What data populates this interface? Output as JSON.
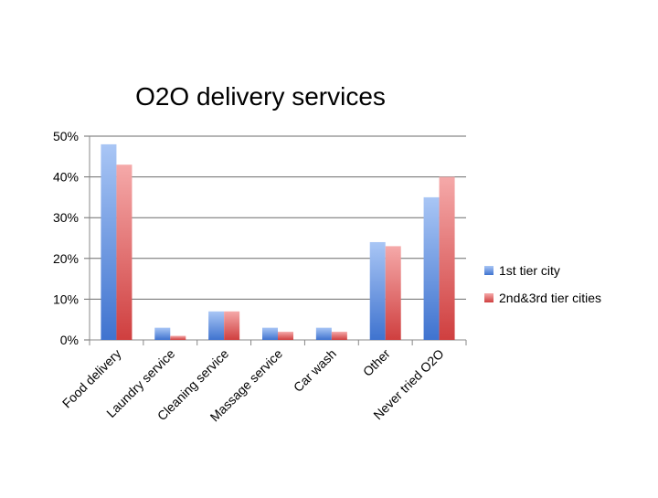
{
  "chart_data": {
    "type": "bar",
    "title": "O2O delivery services",
    "xlabel": "",
    "ylabel": "",
    "ylim": [
      0,
      50
    ],
    "yticks": [
      "0%",
      "10%",
      "20%",
      "30%",
      "40%",
      "50%"
    ],
    "ytick_values": [
      0,
      10,
      20,
      30,
      40,
      50
    ],
    "grid": "horizontal",
    "legend_position": "right",
    "categories": [
      "Food delivery",
      "Laundry service",
      "Cleaning service",
      "Massage service",
      "Car wash",
      "Other",
      "Never tried O2O"
    ],
    "series": [
      {
        "name": "1st tier city",
        "color": "#5b8fe0",
        "values": [
          48,
          3,
          7,
          3,
          3,
          24,
          35
        ]
      },
      {
        "name": "2nd&3rd tier cities",
        "color": "#e05b5b",
        "values": [
          43,
          1,
          7,
          2,
          2,
          23,
          40
        ]
      }
    ]
  }
}
